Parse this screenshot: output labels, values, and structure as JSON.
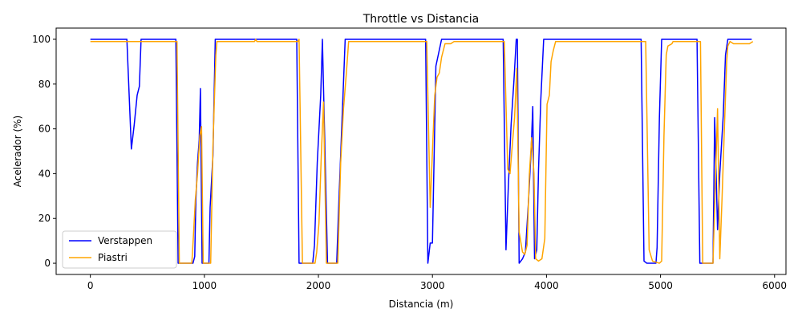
{
  "chart_data": {
    "type": "line",
    "title": "Throttle vs Distancia",
    "xlabel": "Distancia (m)",
    "ylabel": "Acelerador (%)",
    "xlim": [
      -300,
      6100
    ],
    "ylim": [
      -5,
      105
    ],
    "xticks": [
      0,
      1000,
      2000,
      3000,
      4000,
      5000,
      6000
    ],
    "yticks": [
      0,
      20,
      40,
      60,
      80,
      100
    ],
    "grid": false,
    "legend": "lower-left",
    "series": [
      {
        "name": "Verstappen",
        "color": "#0000ff",
        "points": [
          [
            0,
            100
          ],
          [
            320,
            100
          ],
          [
            360,
            51
          ],
          [
            385,
            62
          ],
          [
            410,
            75
          ],
          [
            430,
            79
          ],
          [
            445,
            100
          ],
          [
            750,
            100
          ],
          [
            770,
            0
          ],
          [
            900,
            0
          ],
          [
            915,
            3
          ],
          [
            925,
            28
          ],
          [
            940,
            45
          ],
          [
            955,
            55
          ],
          [
            965,
            78
          ],
          [
            980,
            0
          ],
          [
            1040,
            0
          ],
          [
            1050,
            25
          ],
          [
            1075,
            48
          ],
          [
            1095,
            100
          ],
          [
            1810,
            100
          ],
          [
            1830,
            0
          ],
          [
            1950,
            0
          ],
          [
            1965,
            8
          ],
          [
            1990,
            45
          ],
          [
            2020,
            75
          ],
          [
            2035,
            100
          ],
          [
            2080,
            0
          ],
          [
            2160,
            0
          ],
          [
            2180,
            28
          ],
          [
            2200,
            55
          ],
          [
            2235,
            100
          ],
          [
            2940,
            100
          ],
          [
            2960,
            0
          ],
          [
            2980,
            9
          ],
          [
            3000,
            9
          ],
          [
            3030,
            88
          ],
          [
            3080,
            100
          ],
          [
            3620,
            100
          ],
          [
            3645,
            6
          ],
          [
            3665,
            34
          ],
          [
            3690,
            62
          ],
          [
            3715,
            82
          ],
          [
            3735,
            100
          ],
          [
            3745,
            100
          ],
          [
            3760,
            0
          ],
          [
            3790,
            2
          ],
          [
            3815,
            5
          ],
          [
            3840,
            26
          ],
          [
            3865,
            50
          ],
          [
            3880,
            70
          ],
          [
            3895,
            2
          ],
          [
            3915,
            6
          ],
          [
            3930,
            42
          ],
          [
            3950,
            73
          ],
          [
            3975,
            100
          ],
          [
            4830,
            100
          ],
          [
            4855,
            1
          ],
          [
            4880,
            0
          ],
          [
            4960,
            0
          ],
          [
            4970,
            7
          ],
          [
            4990,
            65
          ],
          [
            5010,
            100
          ],
          [
            5320,
            100
          ],
          [
            5345,
            0
          ],
          [
            5440,
            0
          ],
          [
            5460,
            0
          ],
          [
            5475,
            65
          ],
          [
            5490,
            35
          ],
          [
            5500,
            15
          ],
          [
            5520,
            40
          ],
          [
            5550,
            66
          ],
          [
            5570,
            93
          ],
          [
            5590,
            100
          ],
          [
            5800,
            100
          ]
        ]
      },
      {
        "name": "Piastri",
        "color": "#ffa500",
        "points": [
          [
            0,
            99
          ],
          [
            760,
            99
          ],
          [
            780,
            0
          ],
          [
            890,
            0
          ],
          [
            905,
            13
          ],
          [
            920,
            28
          ],
          [
            940,
            40
          ],
          [
            960,
            57
          ],
          [
            975,
            61
          ],
          [
            990,
            0
          ],
          [
            1055,
            0
          ],
          [
            1075,
            52
          ],
          [
            1100,
            93
          ],
          [
            1110,
            99
          ],
          [
            1440,
            99
          ],
          [
            1450,
            100
          ],
          [
            1460,
            99
          ],
          [
            1820,
            99
          ],
          [
            1830,
            100
          ],
          [
            1860,
            0
          ],
          [
            1970,
            0
          ],
          [
            1985,
            5
          ],
          [
            2005,
            18
          ],
          [
            2025,
            48
          ],
          [
            2045,
            72
          ],
          [
            2070,
            0
          ],
          [
            2170,
            0
          ],
          [
            2195,
            45
          ],
          [
            2220,
            69
          ],
          [
            2245,
            85
          ],
          [
            2265,
            99
          ],
          [
            2950,
            99
          ],
          [
            2980,
            25
          ],
          [
            3000,
            50
          ],
          [
            3020,
            75
          ],
          [
            3040,
            83
          ],
          [
            3060,
            85
          ],
          [
            3080,
            92
          ],
          [
            3110,
            98
          ],
          [
            3160,
            98
          ],
          [
            3190,
            99
          ],
          [
            3630,
            99
          ],
          [
            3660,
            42
          ],
          [
            3680,
            40
          ],
          [
            3720,
            65
          ],
          [
            3740,
            87
          ],
          [
            3760,
            14
          ],
          [
            3790,
            5
          ],
          [
            3810,
            4
          ],
          [
            3830,
            8
          ],
          [
            3850,
            40
          ],
          [
            3870,
            56
          ],
          [
            3890,
            40
          ],
          [
            3905,
            2
          ],
          [
            3930,
            1
          ],
          [
            3960,
            2
          ],
          [
            3985,
            11
          ],
          [
            4005,
            71
          ],
          [
            4025,
            75
          ],
          [
            4040,
            90
          ],
          [
            4060,
            95
          ],
          [
            4080,
            99
          ],
          [
            4850,
            99
          ],
          [
            4870,
            99
          ],
          [
            4900,
            6
          ],
          [
            4930,
            1
          ],
          [
            4990,
            0
          ],
          [
            5010,
            1
          ],
          [
            5030,
            57
          ],
          [
            5050,
            93
          ],
          [
            5065,
            97
          ],
          [
            5100,
            98
          ],
          [
            5110,
            99
          ],
          [
            5350,
            99
          ],
          [
            5370,
            0
          ],
          [
            5460,
            0
          ],
          [
            5500,
            69
          ],
          [
            5520,
            2
          ],
          [
            5540,
            30
          ],
          [
            5560,
            60
          ],
          [
            5580,
            90
          ],
          [
            5590,
            97
          ],
          [
            5610,
            99
          ],
          [
            5640,
            98
          ],
          [
            5680,
            98
          ],
          [
            5730,
            98
          ],
          [
            5780,
            98
          ],
          [
            5810,
            99
          ]
        ]
      }
    ]
  }
}
